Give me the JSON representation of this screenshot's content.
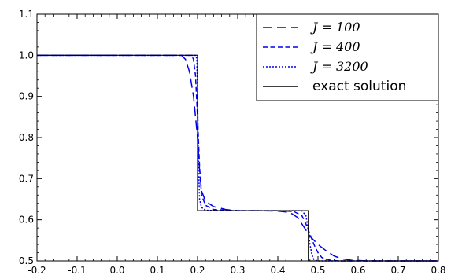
{
  "chart_data": {
    "type": "line",
    "title": "",
    "xlabel": "",
    "ylabel": "",
    "xlim": [
      -0.2,
      0.8
    ],
    "ylim": [
      0.5,
      1.1
    ],
    "xticks": [
      "-0.2",
      "-0.1",
      "0.0",
      "0.1",
      "0.2",
      "0.3",
      "0.4",
      "0.5",
      "0.6",
      "0.7",
      "0.8"
    ],
    "yticks": [
      "0.5",
      "0.6",
      "0.7",
      "0.8",
      "0.9",
      "1.0",
      "1.1"
    ],
    "grid": false,
    "legend_position": "top-right",
    "series": [
      {
        "name": "J = 100",
        "color": "#0000ee",
        "dash": "long-dash",
        "points": [
          [
            -0.2,
            1.0
          ],
          [
            0.16,
            1.0
          ],
          [
            0.17,
            0.99
          ],
          [
            0.18,
            0.96
          ],
          [
            0.19,
            0.9
          ],
          [
            0.2,
            0.8
          ],
          [
            0.205,
            0.72
          ],
          [
            0.21,
            0.67
          ],
          [
            0.22,
            0.645
          ],
          [
            0.24,
            0.632
          ],
          [
            0.27,
            0.625
          ],
          [
            0.3,
            0.622
          ],
          [
            0.35,
            0.622
          ],
          [
            0.4,
            0.621
          ],
          [
            0.43,
            0.618
          ],
          [
            0.45,
            0.605
          ],
          [
            0.46,
            0.59
          ],
          [
            0.47,
            0.575
          ],
          [
            0.48,
            0.56
          ],
          [
            0.5,
            0.54
          ],
          [
            0.52,
            0.525
          ],
          [
            0.54,
            0.512
          ],
          [
            0.56,
            0.505
          ],
          [
            0.58,
            0.502
          ],
          [
            0.62,
            0.5
          ],
          [
            0.8,
            0.5
          ]
        ]
      },
      {
        "name": "J = 400",
        "color": "#0000ee",
        "dash": "dash",
        "points": [
          [
            -0.2,
            1.0
          ],
          [
            0.185,
            1.0
          ],
          [
            0.19,
            0.99
          ],
          [
            0.195,
            0.95
          ],
          [
            0.2,
            0.85
          ],
          [
            0.205,
            0.73
          ],
          [
            0.21,
            0.66
          ],
          [
            0.22,
            0.635
          ],
          [
            0.24,
            0.625
          ],
          [
            0.3,
            0.622
          ],
          [
            0.4,
            0.622
          ],
          [
            0.44,
            0.62
          ],
          [
            0.46,
            0.61
          ],
          [
            0.47,
            0.59
          ],
          [
            0.48,
            0.565
          ],
          [
            0.49,
            0.54
          ],
          [
            0.5,
            0.52
          ],
          [
            0.51,
            0.508
          ],
          [
            0.53,
            0.502
          ],
          [
            0.55,
            0.5
          ],
          [
            0.8,
            0.5
          ]
        ]
      },
      {
        "name": "J = 3200",
        "color": "#0000ee",
        "dash": "dot",
        "points": [
          [
            -0.2,
            1.0
          ],
          [
            0.196,
            1.0
          ],
          [
            0.198,
            0.99
          ],
          [
            0.2,
            0.92
          ],
          [
            0.202,
            0.75
          ],
          [
            0.205,
            0.65
          ],
          [
            0.21,
            0.63
          ],
          [
            0.22,
            0.623
          ],
          [
            0.3,
            0.622
          ],
          [
            0.46,
            0.622
          ],
          [
            0.47,
            0.61
          ],
          [
            0.475,
            0.58
          ],
          [
            0.48,
            0.54
          ],
          [
            0.485,
            0.515
          ],
          [
            0.49,
            0.503
          ],
          [
            0.5,
            0.5
          ],
          [
            0.8,
            0.5
          ]
        ]
      },
      {
        "name": "exact solution",
        "color": "#000000",
        "dash": "solid",
        "points": [
          [
            -0.2,
            1.0
          ],
          [
            0.2,
            1.0
          ],
          [
            0.2,
            0.622
          ],
          [
            0.476,
            0.622
          ],
          [
            0.476,
            0.5
          ],
          [
            0.8,
            0.5
          ]
        ]
      }
    ]
  },
  "legend": {
    "items": [
      {
        "label": "J = 100",
        "style": "long-dash"
      },
      {
        "label": "J = 400",
        "style": "dash"
      },
      {
        "label": "J = 3200",
        "style": "dot"
      },
      {
        "label": "exact solution",
        "style": "solid"
      }
    ]
  }
}
